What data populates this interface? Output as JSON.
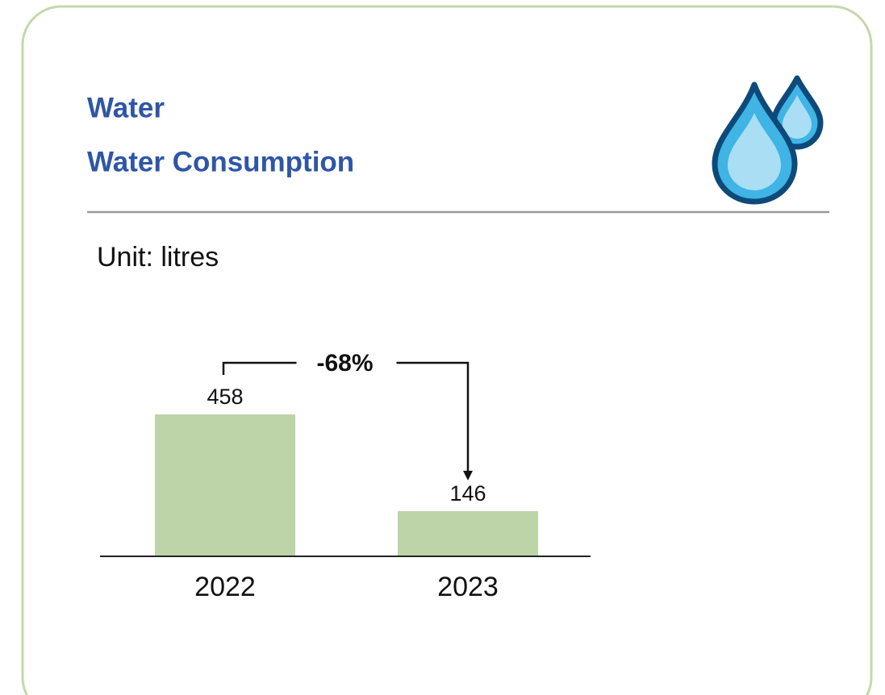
{
  "chart_data": {
    "type": "bar",
    "title": "Water",
    "subtitle": "Water Consumption",
    "unit_label": "Unit: litres",
    "categories": [
      "2022",
      "2023"
    ],
    "values": [
      458,
      146
    ],
    "color": "#bcd4a8",
    "annotation": "-68%"
  }
}
